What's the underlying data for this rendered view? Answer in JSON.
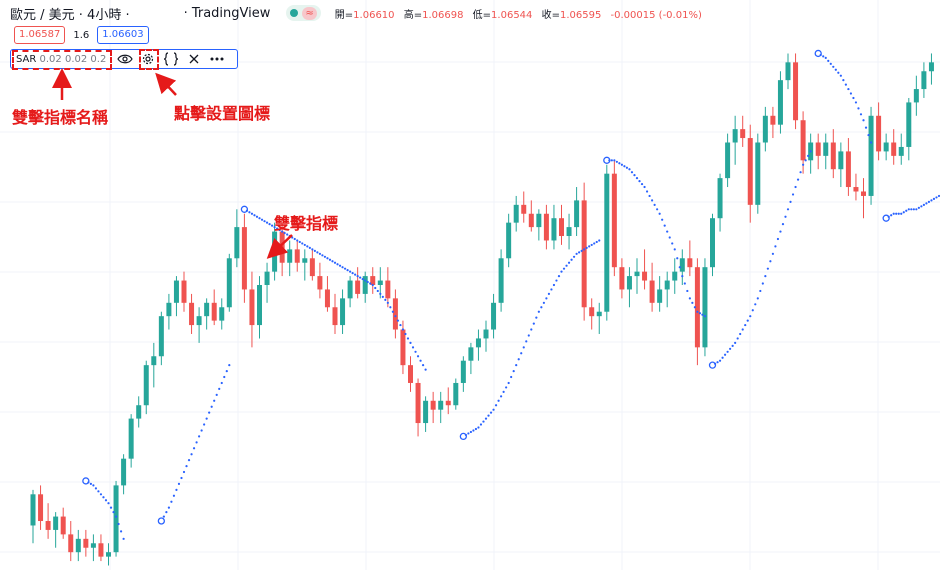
{
  "header": {
    "symbol": "歐元 / 美元 · 4小時 ·",
    "source": "· TradingView",
    "status_wave": "≈",
    "ohlc": [
      {
        "label": "開=",
        "value": "1.06610"
      },
      {
        "label": "高=",
        "value": "1.06698"
      },
      {
        "label": "低=",
        "value": "1.06544"
      },
      {
        "label": "收=",
        "value": "1.06595"
      },
      {
        "label": "",
        "value": "-0.00015 (-0.01%)"
      }
    ]
  },
  "trade": {
    "sell_price": "1.06587",
    "spread": "1.6",
    "buy_price": "1.06603"
  },
  "indicator": {
    "name": "SAR",
    "params": "0.02 0.02 0.2",
    "icons": [
      "eye-icon",
      "gear-icon",
      "braces-icon",
      "close-icon",
      "more-icon"
    ]
  },
  "annotations": {
    "name_label": "雙擊指標名稱",
    "settings_label": "點擊設置圖標",
    "indicator_label": "雙擊指標"
  },
  "colors": {
    "up": "#26a69a",
    "down": "#ef5350",
    "sar": "#2962ff",
    "annotation": "#e51a1a",
    "grid": "#f0f3fa"
  },
  "chart_data": {
    "type": "candlestick",
    "indicator": "Parabolic SAR (0.02, 0.02, 0.2)",
    "candles": [
      [
        1.0604,
        1.0612,
        1.06,
        1.0611
      ],
      [
        1.0611,
        1.0613,
        1.0603,
        1.0605
      ],
      [
        1.0605,
        1.0609,
        1.0601,
        1.0603
      ],
      [
        1.0603,
        1.0607,
        1.0599,
        1.0606
      ],
      [
        1.0606,
        1.0608,
        1.0601,
        1.0602
      ],
      [
        1.0602,
        1.0605,
        1.0596,
        1.0598
      ],
      [
        1.0598,
        1.0603,
        1.0596,
        1.0601
      ],
      [
        1.0601,
        1.0603,
        1.0597,
        1.0599
      ],
      [
        1.0599,
        1.0602,
        1.0596,
        1.06
      ],
      [
        1.06,
        1.0602,
        1.0596,
        1.0597
      ],
      [
        1.0597,
        1.06,
        1.0595,
        1.0598
      ],
      [
        1.0598,
        1.0614,
        1.0597,
        1.0613
      ],
      [
        1.0613,
        1.062,
        1.0611,
        1.0619
      ],
      [
        1.0619,
        1.0629,
        1.0617,
        1.0628
      ],
      [
        1.0628,
        1.0633,
        1.0626,
        1.0631
      ],
      [
        1.0631,
        1.0641,
        1.0629,
        1.064
      ],
      [
        1.064,
        1.0645,
        1.0635,
        1.0642
      ],
      [
        1.0642,
        1.0652,
        1.064,
        1.0651
      ],
      [
        1.0651,
        1.0656,
        1.0648,
        1.0654
      ],
      [
        1.0654,
        1.066,
        1.0651,
        1.0659
      ],
      [
        1.0659,
        1.0661,
        1.0652,
        1.0654
      ],
      [
        1.0654,
        1.0656,
        1.0647,
        1.0649
      ],
      [
        1.0649,
        1.0653,
        1.0645,
        1.0651
      ],
      [
        1.0651,
        1.0655,
        1.0648,
        1.0654
      ],
      [
        1.0654,
        1.0657,
        1.0649,
        1.065
      ],
      [
        1.065,
        1.0655,
        1.0648,
        1.0653
      ],
      [
        1.0653,
        1.0665,
        1.0652,
        1.0664
      ],
      [
        1.0664,
        1.0675,
        1.0662,
        1.0671
      ],
      [
        1.0671,
        1.0674,
        1.0654,
        1.0657
      ],
      [
        1.0657,
        1.0661,
        1.0644,
        1.0649
      ],
      [
        1.0649,
        1.066,
        1.0646,
        1.0658
      ],
      [
        1.0658,
        1.0663,
        1.0654,
        1.0661
      ],
      [
        1.0661,
        1.0672,
        1.0659,
        1.067
      ],
      [
        1.067,
        1.0672,
        1.066,
        1.0663
      ],
      [
        1.0663,
        1.0668,
        1.066,
        1.0666
      ],
      [
        1.0666,
        1.0668,
        1.0661,
        1.0663
      ],
      [
        1.0663,
        1.0666,
        1.0659,
        1.0664
      ],
      [
        1.0664,
        1.0666,
        1.0659,
        1.066
      ],
      [
        1.066,
        1.0663,
        1.0655,
        1.0657
      ],
      [
        1.0657,
        1.066,
        1.0652,
        1.0653
      ],
      [
        1.0653,
        1.0656,
        1.0647,
        1.0649
      ],
      [
        1.0649,
        1.0657,
        1.0647,
        1.0655
      ],
      [
        1.0655,
        1.066,
        1.0653,
        1.0659
      ],
      [
        1.0659,
        1.0662,
        1.0655,
        1.0656
      ],
      [
        1.0656,
        1.0661,
        1.0654,
        1.066
      ],
      [
        1.066,
        1.0662,
        1.0656,
        1.0658
      ],
      [
        1.0658,
        1.0662,
        1.0655,
        1.0659
      ],
      [
        1.0659,
        1.0662,
        1.0653,
        1.0655
      ],
      [
        1.0655,
        1.0657,
        1.0646,
        1.0648
      ],
      [
        1.0648,
        1.065,
        1.0638,
        1.064
      ],
      [
        1.064,
        1.0642,
        1.0634,
        1.0636
      ],
      [
        1.0636,
        1.0637,
        1.0624,
        1.0627
      ],
      [
        1.0627,
        1.0633,
        1.0625,
        1.0632
      ],
      [
        1.0632,
        1.0634,
        1.0627,
        1.063
      ],
      [
        1.063,
        1.0634,
        1.0627,
        1.0632
      ],
      [
        1.0632,
        1.0635,
        1.0629,
        1.0631
      ],
      [
        1.0631,
        1.0637,
        1.063,
        1.0636
      ],
      [
        1.0636,
        1.0642,
        1.0634,
        1.0641
      ],
      [
        1.0641,
        1.0645,
        1.0638,
        1.0644
      ],
      [
        1.0644,
        1.0648,
        1.0641,
        1.0646
      ],
      [
        1.0646,
        1.065,
        1.0643,
        1.0648
      ],
      [
        1.0648,
        1.0656,
        1.0646,
        1.0654
      ],
      [
        1.0654,
        1.0666,
        1.0652,
        1.0664
      ],
      [
        1.0664,
        1.0674,
        1.0662,
        1.0672
      ],
      [
        1.0672,
        1.0678,
        1.067,
        1.0676
      ],
      [
        1.0676,
        1.0679,
        1.0672,
        1.0674
      ],
      [
        1.0674,
        1.0677,
        1.067,
        1.0671
      ],
      [
        1.0671,
        1.0675,
        1.0668,
        1.0674
      ],
      [
        1.0674,
        1.0676,
        1.0666,
        1.0668
      ],
      [
        1.0668,
        1.0676,
        1.0666,
        1.0673
      ],
      [
        1.0673,
        1.0676,
        1.0667,
        1.0669
      ],
      [
        1.0669,
        1.0674,
        1.0666,
        1.0671
      ],
      [
        1.0671,
        1.068,
        1.0669,
        1.0677
      ],
      [
        1.0677,
        1.0681,
        1.065,
        1.0653
      ],
      [
        1.0653,
        1.0655,
        1.0648,
        1.0651
      ],
      [
        1.0651,
        1.0654,
        1.0647,
        1.0652
      ],
      [
        1.0652,
        1.0685,
        1.065,
        1.0683
      ],
      [
        1.0683,
        1.0686,
        1.066,
        1.0662
      ],
      [
        1.0662,
        1.0664,
        1.0655,
        1.0657
      ],
      [
        1.0657,
        1.0662,
        1.0653,
        1.066
      ],
      [
        1.066,
        1.0664,
        1.0656,
        1.0661
      ],
      [
        1.0661,
        1.0666,
        1.0657,
        1.0659
      ],
      [
        1.0659,
        1.0663,
        1.0652,
        1.0654
      ],
      [
        1.0654,
        1.066,
        1.0652,
        1.0657
      ],
      [
        1.0657,
        1.0661,
        1.0653,
        1.0659
      ],
      [
        1.0659,
        1.0664,
        1.0656,
        1.0661
      ],
      [
        1.0661,
        1.0666,
        1.0658,
        1.0664
      ],
      [
        1.0664,
        1.0668,
        1.066,
        1.0662
      ],
      [
        1.0662,
        1.0664,
        1.064,
        1.0644
      ],
      [
        1.0644,
        1.0664,
        1.0642,
        1.0662
      ],
      [
        1.0662,
        1.0674,
        1.066,
        1.0673
      ],
      [
        1.0673,
        1.0683,
        1.067,
        1.0682
      ],
      [
        1.0682,
        1.0692,
        1.068,
        1.069
      ],
      [
        1.069,
        1.0696,
        1.0685,
        1.0693
      ],
      [
        1.0693,
        1.0696,
        1.0689,
        1.0691
      ],
      [
        1.0691,
        1.0694,
        1.0672,
        1.0676
      ],
      [
        1.0676,
        1.0692,
        1.0674,
        1.069
      ],
      [
        1.069,
        1.0698,
        1.0688,
        1.0696
      ],
      [
        1.0696,
        1.0698,
        1.0691,
        1.0694
      ],
      [
        1.0694,
        1.0706,
        1.0692,
        1.0704
      ],
      [
        1.0704,
        1.071,
        1.0702,
        1.0708
      ],
      [
        1.0708,
        1.071,
        1.0693,
        1.0695
      ],
      [
        1.0695,
        1.0697,
        1.0683,
        1.0686
      ],
      [
        1.0686,
        1.0692,
        1.0683,
        1.069
      ],
      [
        1.069,
        1.0692,
        1.0684,
        1.0687
      ],
      [
        1.0687,
        1.0692,
        1.0684,
        1.069
      ],
      [
        1.069,
        1.0693,
        1.0682,
        1.0684
      ],
      [
        1.0684,
        1.069,
        1.068,
        1.0688
      ],
      [
        1.0688,
        1.0691,
        1.0678,
        1.068
      ],
      [
        1.068,
        1.0683,
        1.0677,
        1.0679
      ],
      [
        1.0679,
        1.0682,
        1.0673,
        1.0678
      ],
      [
        1.0678,
        1.0698,
        1.0676,
        1.0696
      ],
      [
        1.0696,
        1.0699,
        1.0686,
        1.0688
      ],
      [
        1.0688,
        1.0692,
        1.0686,
        1.069
      ],
      [
        1.069,
        1.0693,
        1.0685,
        1.0687
      ],
      [
        1.0687,
        1.0692,
        1.0685,
        1.0689
      ],
      [
        1.0689,
        1.07,
        1.0686,
        1.0699
      ],
      [
        1.0699,
        1.0705,
        1.0696,
        1.0702
      ],
      [
        1.0702,
        1.0708,
        1.07,
        1.0706
      ],
      [
        1.0706,
        1.071,
        1.0703,
        1.0708
      ]
    ],
    "sar": {
      "segments": [
        {
          "start": 7,
          "values": [
            1.0614,
            1.0613,
            1.0611,
            1.0609,
            1.0606,
            1.0601
          ]
        },
        {
          "start": 17,
          "values": [
            1.0605,
            1.0608,
            1.0612,
            1.0616,
            1.062,
            1.0624,
            1.0628,
            1.0632,
            1.0636,
            1.064
          ]
        },
        {
          "start": 28,
          "values": [
            1.0675,
            1.0674,
            1.0673,
            1.0672,
            1.0671,
            1.067,
            1.0669,
            1.0668,
            1.0667,
            1.0666,
            1.0665,
            1.0664,
            1.0663,
            1.0662,
            1.0661,
            1.066,
            1.0659,
            1.0658,
            1.0656,
            1.0654,
            1.0651,
            1.0648,
            1.0645,
            1.0642,
            1.0639
          ]
        },
        {
          "start": 57,
          "values": [
            1.0624,
            1.0625,
            1.0626,
            1.0628,
            1.063,
            1.0633,
            1.0636,
            1.064,
            1.0644,
            1.0648,
            1.0652,
            1.0655,
            1.0658,
            1.0661,
            1.0663,
            1.0665,
            1.0666,
            1.0667,
            1.0668
          ]
        },
        {
          "start": 76,
          "values": [
            1.0686,
            1.0686,
            1.0685,
            1.0684,
            1.0682,
            1.068,
            1.0677,
            1.0674,
            1.067,
            1.0666,
            1.066,
            1.0655,
            1.0652,
            1.0651
          ]
        },
        {
          "start": 90,
          "values": [
            1.064,
            1.0641,
            1.0643,
            1.0645,
            1.0648,
            1.0651,
            1.0655,
            1.066,
            1.0665,
            1.067,
            1.0675,
            1.068,
            1.0685,
            1.0688
          ]
        },
        {
          "start": 104,
          "values": [
            1.071,
            1.0709,
            1.0707,
            1.0705,
            1.0702,
            1.0699,
            1.0695,
            1.069
          ]
        },
        {
          "start": 113,
          "values": [
            1.0673,
            1.0674,
            1.0674,
            1.0675,
            1.0675,
            1.0676,
            1.0677,
            1.0678,
            1.068
          ]
        }
      ],
      "flip_marks": [
        7,
        17,
        28,
        57,
        76,
        90,
        104,
        113
      ]
    },
    "ylim": [
      1.0594,
      1.0722
    ]
  }
}
